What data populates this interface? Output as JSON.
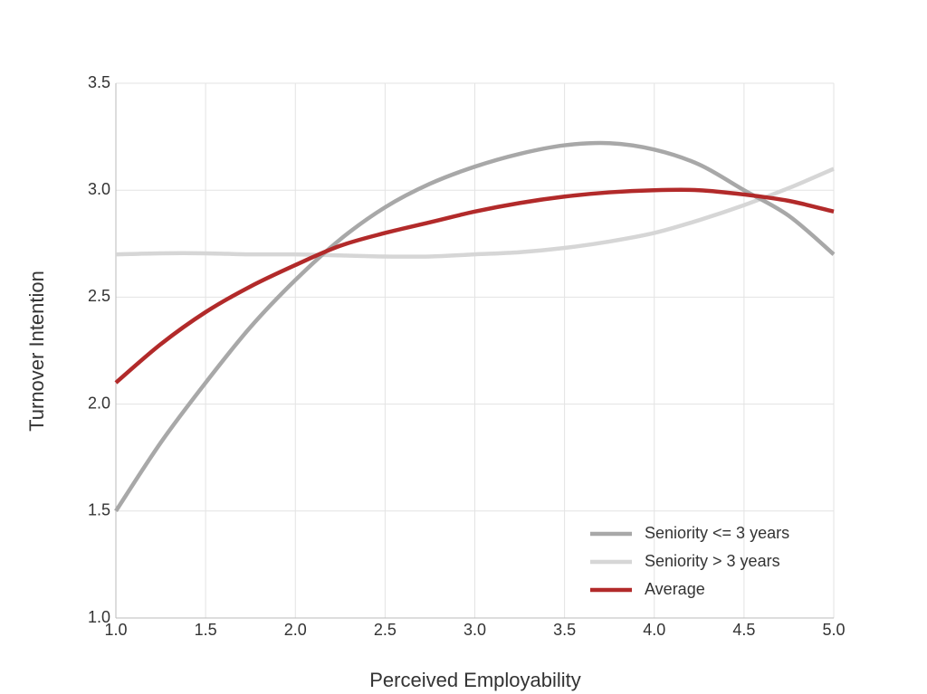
{
  "chart_data": {
    "type": "line",
    "x_label": "Perceived Employability",
    "y_label": "Turnover Intention",
    "x": [
      1.0,
      1.25,
      1.5,
      1.75,
      2.0,
      2.25,
      2.5,
      2.75,
      3.0,
      3.25,
      3.5,
      3.75,
      4.0,
      4.25,
      4.5,
      4.75,
      5.0
    ],
    "series": [
      {
        "name": "Seniority <= 3 years",
        "color": "#a8a8a8",
        "values": [
          1.5,
          1.82,
          2.1,
          2.36,
          2.58,
          2.77,
          2.92,
          3.03,
          3.11,
          3.17,
          3.21,
          3.22,
          3.19,
          3.12,
          3.0,
          2.88,
          2.7
        ]
      },
      {
        "name": "Seniority > 3 years",
        "color": "#d6d6d6",
        "values": [
          2.7,
          2.705,
          2.705,
          2.7,
          2.7,
          2.695,
          2.69,
          2.69,
          2.7,
          2.71,
          2.73,
          2.76,
          2.8,
          2.86,
          2.93,
          3.01,
          3.1
        ]
      },
      {
        "name": "Average",
        "color": "#b22a2a",
        "values": [
          2.1,
          2.28,
          2.43,
          2.55,
          2.65,
          2.74,
          2.8,
          2.85,
          2.9,
          2.94,
          2.97,
          2.99,
          3.0,
          3.0,
          2.98,
          2.95,
          2.9
        ]
      }
    ],
    "xlim": [
      1.0,
      5.0
    ],
    "xticks": [
      {
        "value": 1,
        "label": "1.0"
      },
      1.5,
      {
        "value": 2,
        "label": "2.0"
      },
      2.5,
      {
        "value": 3,
        "label": "3.0"
      },
      3.5,
      {
        "value": 4,
        "label": "4.0"
      },
      4.5,
      {
        "value": 5,
        "label": "5.0"
      }
    ],
    "ylim": [
      1.0,
      3.5
    ],
    "yticks": [
      {
        "value": 1,
        "label": "1.0"
      },
      1.5,
      {
        "value": 2,
        "label": "2.0"
      },
      2.5,
      {
        "value": 3,
        "label": "3.0"
      },
      3.5
    ],
    "grid": true,
    "legend": "lower right"
  }
}
